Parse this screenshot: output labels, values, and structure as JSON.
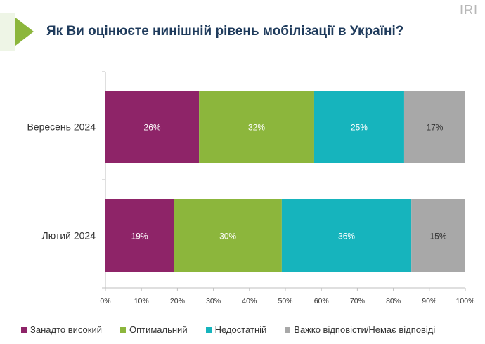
{
  "header": {
    "title": "Як Ви оцінюєте нинішній рівень мобілізації в Україні?",
    "brand": "IRI"
  },
  "colors": {
    "accent": "#8cb63c",
    "title": "#1f3b5c"
  },
  "chart_data": {
    "type": "bar",
    "orientation": "horizontal",
    "stacked": true,
    "categories": [
      "Вересень 2024",
      "Лютий 2024"
    ],
    "series": [
      {
        "name": "Занадто високий",
        "color": "#8e2468",
        "values": [
          26,
          19
        ],
        "labels": [
          "26%",
          "19%"
        ]
      },
      {
        "name": "Оптимальний",
        "color": "#8cb63c",
        "values": [
          32,
          30
        ],
        "labels": [
          "32%",
          "30%"
        ]
      },
      {
        "name": "Недостатній",
        "color": "#16b4bd",
        "values": [
          25,
          36
        ],
        "labels": [
          "25%",
          "36%"
        ]
      },
      {
        "name": "Важко відповісти/Немає відповіді",
        "color": "#a8a8a8",
        "values": [
          17,
          15
        ],
        "labels": [
          "17%",
          "15%"
        ]
      }
    ],
    "xlim": [
      0,
      100
    ],
    "xticks": [
      "0%",
      "10%",
      "20%",
      "30%",
      "40%",
      "50%",
      "60%",
      "70%",
      "80%",
      "90%",
      "100%"
    ],
    "legend_position": "bottom",
    "grid": false
  }
}
